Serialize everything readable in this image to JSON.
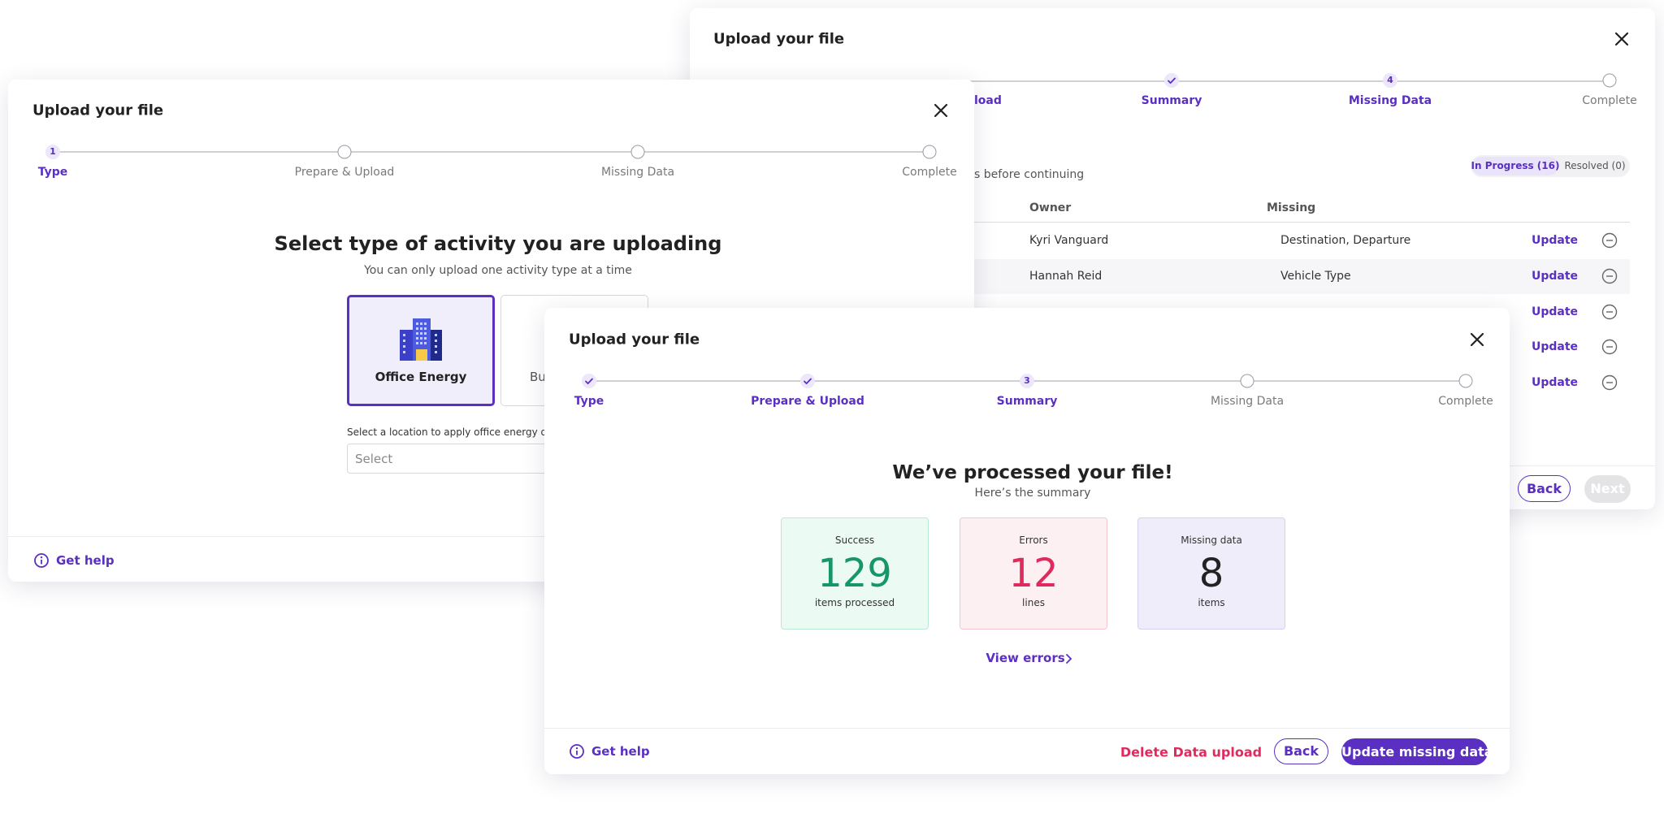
{
  "back_dialog": {
    "title": "Upload your file",
    "steps": [
      "load",
      "Summary",
      "Missing Data",
      "Complete"
    ],
    "step_number": 4,
    "note": "s before continuing",
    "tabs": [
      "In Progress (16)",
      "Resolved (0)"
    ],
    "table": {
      "headers": [
        "Owner",
        "Missing"
      ],
      "rows": [
        {
          "owner": "Kyri Vanguard",
          "missing": "Destination, Departure",
          "action": "Update"
        },
        {
          "owner": "Hannah Reid",
          "missing": "Vehicle Type",
          "action": "Update"
        },
        {
          "action": "Update"
        },
        {
          "action": "Update"
        },
        {
          "action": "Update"
        }
      ]
    },
    "buttons": [
      "Back",
      "Next"
    ]
  },
  "left_dialog": {
    "title": "Upload your file",
    "steps": [
      "Type",
      "Prepare & Upload",
      "Missing Data",
      "Complete"
    ],
    "step_number": 1,
    "heading": "Select type of activity you are uploading",
    "subheading": "You can only upload one activity type at a time",
    "options": [
      "Office Energy",
      "Bu"
    ],
    "location_label": "Select a location to apply office energy data",
    "select_placeholder": "Select",
    "help": "Get help"
  },
  "front_dialog": {
    "title": "Upload your file",
    "steps": [
      "Type",
      "Prepare & Upload",
      "Summary",
      "Missing Data",
      "Complete"
    ],
    "step_number": 3,
    "heading": "We’ve processed your file!",
    "subheading": "Here’s the summary",
    "stats": [
      {
        "label": "Success",
        "value": 129,
        "unit": "items processed"
      },
      {
        "label": "Errors",
        "value": 12,
        "unit": "lines"
      },
      {
        "label": "Missing data",
        "value": 8,
        "unit": "items"
      }
    ],
    "link": "View errors",
    "help": "Get help",
    "buttons": [
      "Delete Data upload",
      "Back",
      "Update missing data"
    ]
  }
}
